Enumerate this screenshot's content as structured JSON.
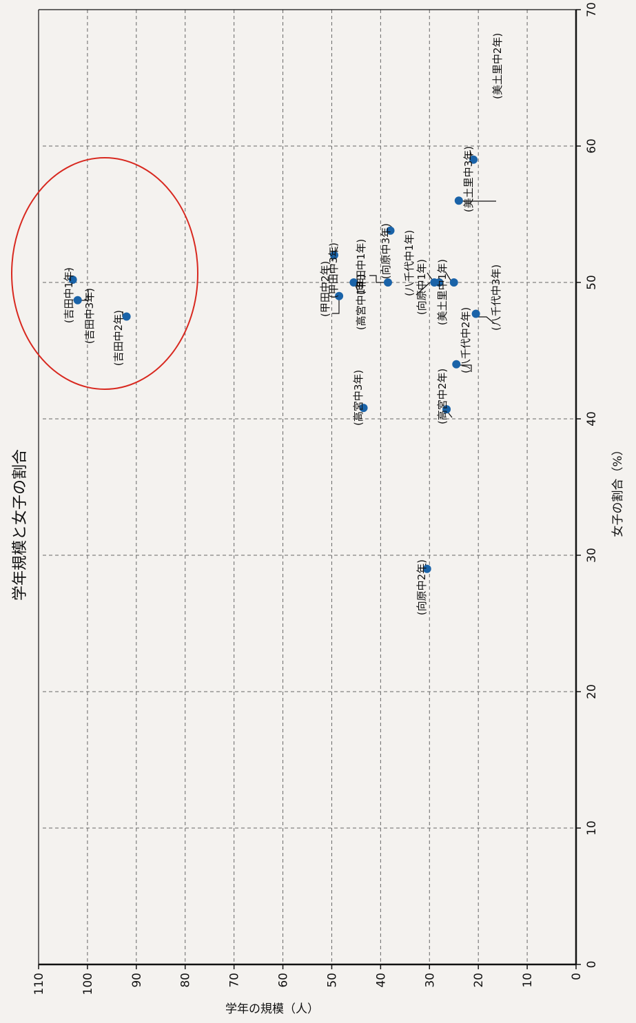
{
  "chart_data": {
    "type": "scatter",
    "title": "学年規模と女子の割合",
    "xlabel": "女子の割合（%）",
    "ylabel": "学年の規模（人）",
    "xlim": [
      0,
      70
    ],
    "ylim": [
      0,
      110
    ],
    "x_ticks": [
      "0",
      "10",
      "20",
      "30",
      "40",
      "50",
      "60",
      "70"
    ],
    "y_ticks": [
      "0",
      "10",
      "20",
      "30",
      "40",
      "50",
      "60",
      "70",
      "80",
      "90",
      "100",
      "110"
    ],
    "grid": true,
    "highlight": {
      "shape": "ellipse",
      "color": "#d8281f",
      "encloses": [
        "(吉田中1年)",
        "(吉田中3年)",
        "(吉田中2年)"
      ]
    },
    "point_color": "#1a63a8",
    "points": [
      {
        "label": "(吉田中1年)",
        "x": 50.2,
        "y": 103
      },
      {
        "label": "(吉田中3年)",
        "x": 48.7,
        "y": 102
      },
      {
        "label": "(吉田中2年)",
        "x": 47.5,
        "y": 92
      },
      {
        "label": "(甲田中3年)",
        "x": 52,
        "y": 49.5
      },
      {
        "label": "(甲田中1年)",
        "x": 50,
        "y": 45.5
      },
      {
        "label": "(甲田中2年)",
        "x": 49,
        "y": 48.5
      },
      {
        "label": "(高宮中1年)",
        "x": 50,
        "y": 38.5
      },
      {
        "label": "(高宮中3年)",
        "x": 40.8,
        "y": 43.5
      },
      {
        "label": "(向原中3年)",
        "x": 53.8,
        "y": 38
      },
      {
        "label": "(向原中1年)",
        "x": 50,
        "y": 29
      },
      {
        "label": "(向原中2年)",
        "x": 29,
        "y": 30.5
      },
      {
        "label": "(美土里中1年)",
        "x": 50,
        "y": 25
      },
      {
        "label": "(美土里中2年)",
        "x": 56,
        "y": 24
      },
      {
        "label": "(美土里中3年)",
        "x": 59,
        "y": 21
      },
      {
        "label": "(八千代中1年)",
        "x": 50,
        "y": 28
      },
      {
        "label": "(八千代中2年)",
        "x": 44,
        "y": 24.5
      },
      {
        "label": "(八千代中3年)",
        "x": 47.7,
        "y": 20.5
      },
      {
        "label": "(高宮中2年)",
        "x": 40.7,
        "y": 26.5
      }
    ]
  }
}
